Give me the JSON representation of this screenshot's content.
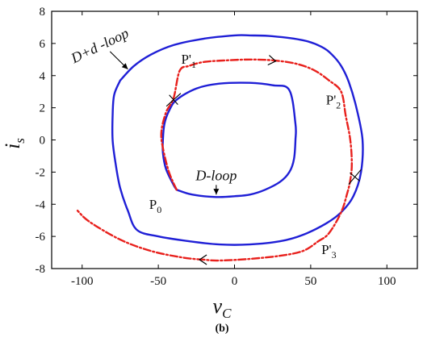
{
  "caption": "(b)",
  "chart_data": {
    "type": "line",
    "title": "",
    "xlabel": "v",
    "xlabel_sub": "C",
    "ylabel": "i",
    "ylabel_sub": "s",
    "xlim": [
      -120,
      120
    ],
    "ylim": [
      -8,
      8
    ],
    "xticks": [
      -100,
      -50,
      0,
      50,
      100
    ],
    "yticks": [
      -8,
      -6,
      -4,
      -2,
      0,
      2,
      4,
      6,
      8
    ],
    "grid": false,
    "colors": {
      "blue": "#1f1fd6",
      "red": "#e8201c",
      "axis": "#000000"
    },
    "series": [
      {
        "name": "D+d -loop",
        "color": "#1f1fd6",
        "style": "solid",
        "x": [
          -75,
          -66,
          -55,
          -40,
          -20,
          0,
          10,
          25,
          45,
          57,
          64,
          70,
          75,
          80,
          84,
          83,
          78,
          70,
          60,
          45,
          30,
          10,
          -10,
          -30,
          -50,
          -64,
          -70,
          -75,
          -78,
          -80,
          -80,
          -79,
          -75
        ],
        "y": [
          3.7,
          4.6,
          5.3,
          5.9,
          6.3,
          6.5,
          6.5,
          6.45,
          6.2,
          5.8,
          5.3,
          4.6,
          3.6,
          2.0,
          0.0,
          -2.0,
          -3.5,
          -4.5,
          -5.2,
          -5.9,
          -6.3,
          -6.5,
          -6.5,
          -6.3,
          -6.0,
          -5.6,
          -4.4,
          -3.0,
          -1.5,
          0.0,
          1.5,
          2.8,
          3.7
        ]
      },
      {
        "name": "D-loop",
        "color": "#1f1fd6",
        "style": "solid",
        "x": [
          -38,
          -30,
          -20,
          -10,
          0,
          10,
          20,
          30,
          36,
          39,
          40,
          40,
          36,
          25,
          10,
          -10,
          -25,
          -38,
          -43,
          -46,
          -47,
          -47,
          -45,
          -40,
          -38
        ],
        "y": [
          -3.1,
          -3.35,
          -3.5,
          -3.55,
          -3.5,
          -3.4,
          -3.1,
          -2.6,
          -2.0,
          -1.2,
          0.0,
          1.0,
          3.1,
          3.4,
          3.55,
          3.5,
          3.2,
          2.5,
          1.8,
          1.0,
          0.0,
          -0.8,
          -1.8,
          -2.8,
          -3.1
        ]
      },
      {
        "name": "",
        "color": "#e8201c",
        "style": "dashdot",
        "x": [
          -38,
          -43,
          -47,
          -48,
          -45,
          -40,
          -36,
          -30,
          -20,
          -5,
          10,
          25,
          40,
          52,
          62,
          70,
          73,
          76,
          77,
          76,
          74,
          70,
          62,
          55,
          45,
          30,
          10,
          -10,
          -20,
          -35,
          -55,
          -75,
          -95,
          -103
        ],
        "y": [
          -3.1,
          -2.0,
          -0.5,
          0.5,
          1.7,
          2.6,
          4.3,
          4.6,
          4.85,
          4.95,
          5.0,
          4.95,
          4.75,
          4.35,
          3.7,
          3.0,
          1.5,
          0.0,
          -1.5,
          -2.5,
          -3.3,
          -4.5,
          -5.8,
          -6.3,
          -6.9,
          -7.2,
          -7.4,
          -7.5,
          -7.45,
          -7.3,
          -6.9,
          -6.2,
          -5.1,
          -4.4
        ]
      }
    ],
    "annotations": [
      {
        "id": "label_ddloop",
        "text": "D+d -loop",
        "x": -87,
        "y": 5.6,
        "arrow_to": [
          -70,
          4.4
        ]
      },
      {
        "id": "label_dloop",
        "text": "D-loop",
        "x": -12,
        "y": -2.5,
        "arrow_to": [
          -12,
          -3.4
        ]
      },
      {
        "id": "p0",
        "base": "P",
        "sub": "0",
        "x": -56,
        "y": -4.3
      },
      {
        "id": "p1",
        "base": "P'",
        "sub": "1",
        "x": -35,
        "y": 4.75
      },
      {
        "id": "p2",
        "base": "P'",
        "sub": "2",
        "x": 60,
        "y": 2.2
      },
      {
        "id": "p3",
        "base": "P'",
        "sub": "3",
        "x": 57,
        "y": -7.1
      }
    ]
  }
}
